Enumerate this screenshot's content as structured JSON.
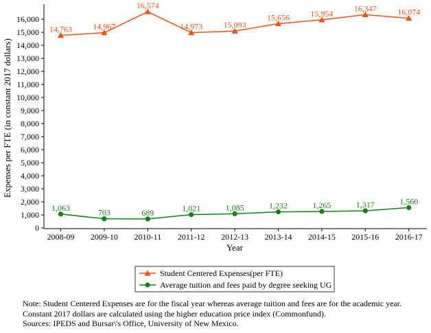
{
  "chart_data": {
    "type": "line",
    "categories": [
      "2008-09",
      "2009-10",
      "2010-11",
      "2011-12",
      "2012-13",
      "2013-14",
      "2014-15",
      "2015-16",
      "2016-17"
    ],
    "series": [
      {
        "name": "Student Centered Expenses(per FTE)",
        "color": "#f4520d",
        "marker": "triangle",
        "values": [
          14763,
          14967,
          16574,
          14973,
          15093,
          15656,
          15954,
          16347,
          16074
        ],
        "labels": [
          "14,763",
          "14,967",
          "16,574",
          "14,973",
          "15,093",
          "15,656",
          "15,954",
          "16,347",
          "16,074"
        ]
      },
      {
        "name": "Average tuition and fees paid by degree seeking UG",
        "color": "#128212",
        "marker": "circle",
        "values": [
          1063,
          703,
          689,
          1021,
          1085,
          1232,
          1265,
          1317,
          1560
        ],
        "labels": [
          "1,063",
          "703",
          "689",
          "1,021",
          "1,085",
          "1,232",
          "1,265",
          "1,317",
          "1,560"
        ]
      }
    ],
    "xlabel": "Year",
    "ylabel": "Expenses per FTE (in constant 2017 dollars)",
    "ylim": [
      0,
      17000
    ],
    "yticks": [
      0,
      1000,
      2000,
      3000,
      4000,
      5000,
      6000,
      7000,
      8000,
      9000,
      10000,
      11000,
      12000,
      13000,
      14000,
      15000,
      16000
    ],
    "ytick_labels": [
      "0",
      "1,000",
      "2,000",
      "3,000",
      "4,000",
      "5,000",
      "6,000",
      "7,000",
      "8,000",
      "9,000",
      "10,000",
      "11,000",
      "12,000",
      "13,000",
      "14,000",
      "15,000",
      "16,000"
    ],
    "grid": false,
    "legend_position": "below"
  },
  "note": {
    "line1": "Note:  Student Centered Expenses are for the fiscal year whereas average tuition and fees are for the academic year.",
    "line2": "Constant 2017 dollars are calculated using the higher education price index (Commonfund).",
    "line3": "Sources: IPEDS and Bursar\\'s Office, University of New Mexico."
  }
}
